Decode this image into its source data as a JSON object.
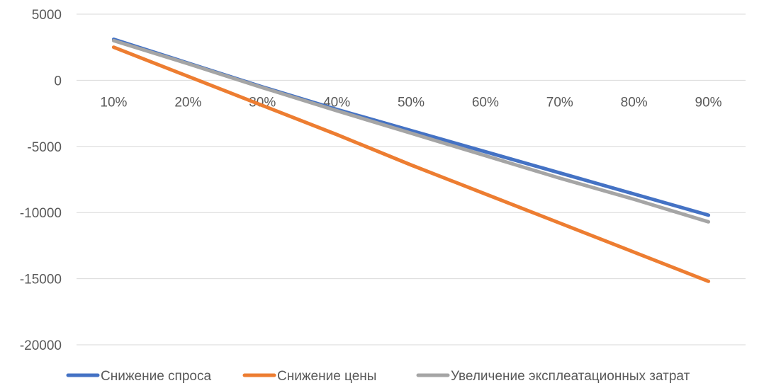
{
  "chart_data": {
    "type": "line",
    "categories": [
      "10%",
      "20%",
      "30%",
      "40%",
      "50%",
      "60%",
      "70%",
      "80%",
      "90%"
    ],
    "series": [
      {
        "name": "Снижение спроса",
        "color": "#4472C4",
        "values": [
          3100,
          1300,
          -500,
          -2200,
          -3800,
          -5400,
          -7000,
          -8600,
          -10200
        ]
      },
      {
        "name": "Снижение цены",
        "color": "#ED7D31",
        "values": [
          2500,
          300,
          -1900,
          -4100,
          -6400,
          -8600,
          -10800,
          -13000,
          -15200
        ]
      },
      {
        "name": "Увеличение эксплеатационных затрат",
        "color": "#A5A5A5",
        "values": [
          3000,
          1250,
          -550,
          -2300,
          -4000,
          -5700,
          -7400,
          -9000,
          -10700
        ]
      }
    ],
    "y_ticks": [
      "5000",
      "0",
      "-5000",
      "-10000",
      "-15000",
      "-20000"
    ],
    "ylim": [
      -20000,
      5000
    ],
    "grid": true,
    "legend_position": "bottom",
    "title": "",
    "xlabel": "",
    "ylabel": ""
  }
}
